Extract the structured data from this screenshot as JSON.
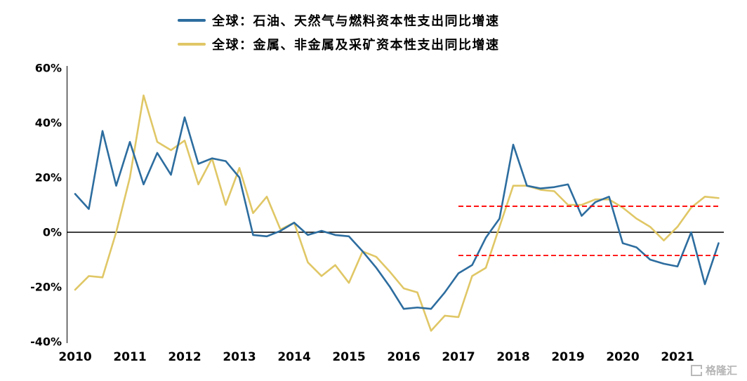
{
  "watermark": {
    "text": "格隆汇"
  },
  "chart_data": {
    "type": "line",
    "title": "",
    "xlabel": "",
    "ylabel": "",
    "grid": false,
    "legend_position": "top",
    "ylim": [
      -40,
      60
    ],
    "y_ticks": [
      60,
      40,
      20,
      0,
      -20,
      -40
    ],
    "y_tick_labels": [
      "60%",
      "40%",
      "20%",
      "0%",
      "-20%",
      "-40%"
    ],
    "x_tick_labels": [
      "2010",
      "2011",
      "2012",
      "2013",
      "2014",
      "2015",
      "2016",
      "2017",
      "2018",
      "2019",
      "2020",
      "2021"
    ],
    "x": [
      "2010Q1",
      "2010Q2",
      "2010Q3",
      "2010Q4",
      "2011Q1",
      "2011Q2",
      "2011Q3",
      "2011Q4",
      "2012Q1",
      "2012Q2",
      "2012Q3",
      "2012Q4",
      "2013Q1",
      "2013Q2",
      "2013Q3",
      "2013Q4",
      "2014Q1",
      "2014Q2",
      "2014Q3",
      "2014Q4",
      "2015Q1",
      "2015Q2",
      "2015Q3",
      "2015Q4",
      "2016Q1",
      "2016Q2",
      "2016Q3",
      "2016Q4",
      "2017Q1",
      "2017Q2",
      "2017Q3",
      "2017Q4",
      "2018Q1",
      "2018Q2",
      "2018Q3",
      "2018Q4",
      "2019Q1",
      "2019Q2",
      "2019Q3",
      "2019Q4",
      "2020Q1",
      "2020Q2",
      "2020Q3",
      "2020Q4",
      "2021Q1",
      "2021Q2",
      "2021Q3",
      "2021Q4"
    ],
    "series": [
      {
        "id": "oil-gas-capex-line",
        "name": "全球：石油、天然气与燃料资本性支出同比增速",
        "color": "#2d6d9f",
        "values": [
          14,
          8.5,
          37,
          17,
          33,
          17.5,
          29,
          21,
          42,
          25,
          27,
          26,
          20,
          -1,
          -1.5,
          0.5,
          3.5,
          -1,
          0.5,
          -1,
          -1.5,
          -7,
          -13,
          -20,
          -28,
          -27.5,
          -28,
          -22,
          -15,
          -12,
          -2,
          5,
          32,
          17,
          16,
          16.5,
          17.5,
          6,
          11,
          13,
          -4,
          -5.5,
          -10,
          -11.5,
          -12.5,
          0,
          -19,
          -4
        ]
      },
      {
        "id": "metals-mining-capex-line",
        "name": "全球：金属、非金属及采矿资本性支出同比增速",
        "color": "#e0c766",
        "values": [
          -21,
          -16,
          -16.5,
          0,
          20,
          50,
          33,
          30,
          33.5,
          17.5,
          27,
          10,
          23.5,
          7,
          13,
          1,
          3.5,
          -11,
          -16,
          -12,
          -18.5,
          -7,
          -9,
          -14.5,
          -20.5,
          -22,
          -36,
          -30.5,
          -31,
          -16,
          -13,
          2,
          17,
          17,
          15.5,
          15,
          10,
          10,
          12,
          12,
          9,
          5,
          2,
          -3,
          2,
          9,
          13,
          12.5
        ]
      }
    ],
    "reference_lines": [
      {
        "id": "upper-red-dashed-line",
        "value": 9.5,
        "color": "#ff0000",
        "style": "dashed",
        "start": "2017Q1",
        "end": "2021Q4",
        "start_index": 28,
        "end_index": 47
      },
      {
        "id": "lower-red-dashed-line",
        "value": -8.5,
        "color": "#ff0000",
        "style": "dashed",
        "start": "2017Q1",
        "end": "2021Q4",
        "start_index": 28,
        "end_index": 47
      }
    ]
  }
}
